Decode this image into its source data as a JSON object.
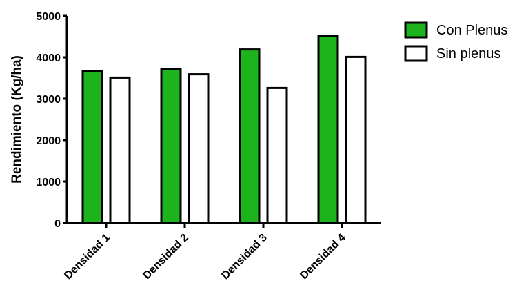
{
  "chart_data": {
    "type": "bar",
    "title": "",
    "xlabel": "",
    "ylabel": "Rendimiento (Kg/ha)",
    "categories": [
      "Densidad 1",
      "Densidad 2",
      "Densidad 3",
      "Densidad 4"
    ],
    "series": [
      {
        "name": "Con Plenus",
        "values": [
          3660,
          3710,
          4190,
          4510
        ],
        "color": "#1db31d"
      },
      {
        "name": "Sin plenus",
        "values": [
          3510,
          3590,
          3260,
          4010
        ],
        "color": "#ffffff"
      }
    ],
    "ylim": [
      0,
      5000
    ],
    "yticks": [
      "0",
      "1000",
      "2000",
      "3000",
      "4000",
      "5000"
    ],
    "grid": false,
    "legend_position": "top-right"
  }
}
